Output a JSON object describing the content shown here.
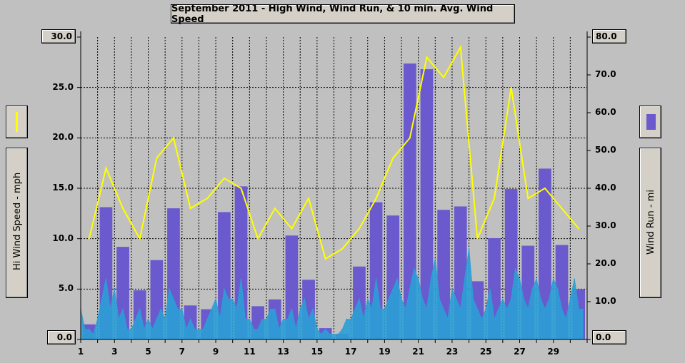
{
  "title": "September 2011 - High Wind, Wind Run, & 10 min. Avg. Wind Speed",
  "left_axis": {
    "label": "Hi Wind Speed - mph",
    "ticks": [
      "30.0",
      "25.0",
      "20.0",
      "15.0",
      "10.0",
      "5.0",
      "0.0"
    ],
    "top_value": "30.0",
    "bottom_value": "0.0"
  },
  "right_axis": {
    "label": "Wind Run - mi",
    "ticks": [
      "80.0",
      "70.0",
      "60.0",
      "50.0",
      "40.0",
      "30.0",
      "20.0",
      "10.0",
      "0.0"
    ],
    "top_value": "80.0",
    "bottom_value": "0.0"
  },
  "x_ticks": [
    "1",
    "3",
    "5",
    "7",
    "9",
    "11",
    "13",
    "15",
    "17",
    "19",
    "21",
    "23",
    "25",
    "27",
    "29"
  ],
  "legend": {
    "hi_wind_color": "#ffff00",
    "wind_run_color": "#6a5acd",
    "avg_color": "#2b9fd6"
  },
  "chart_data": {
    "type": "bar",
    "title": "September 2011 - High Wind, Wind Run, & 10 min. Avg. Wind Speed",
    "xlabel": "",
    "grid": true,
    "x_range": [
      1,
      31
    ],
    "series": [
      {
        "name": "Wind Run - mi",
        "axis": "right",
        "ylim": [
          0,
          80
        ],
        "days": [
          1,
          2,
          3,
          4,
          5,
          6,
          7,
          8,
          9,
          10,
          11,
          12,
          13,
          14,
          15,
          16,
          17,
          18,
          19,
          20,
          21,
          22,
          23,
          24,
          25,
          26,
          27,
          28,
          29,
          30
        ],
        "values": [
          4,
          35,
          24.5,
          13,
          21,
          34.7,
          9,
          8,
          33.7,
          40.5,
          8.8,
          10.6,
          27.5,
          15.8,
          3,
          1.5,
          19.3,
          36.3,
          32.8,
          73,
          71.5,
          34.3,
          35.2,
          15.4,
          26.8,
          39.8,
          24.8,
          45.2,
          25,
          13.3
        ]
      },
      {
        "name": "Hi Wind Speed - mph",
        "axis": "left",
        "ylim": [
          0,
          30
        ],
        "days": [
          1.5,
          2.5,
          3.5,
          4.5,
          5.5,
          6.5,
          7.5,
          8.5,
          9.5,
          10.5,
          11.5,
          12.5,
          13.5,
          14.5,
          15.5,
          16.5,
          17.5,
          18.5,
          19.5,
          20.5,
          21.5,
          22.5,
          23.5,
          24.5,
          25.5,
          26.5,
          27.5,
          28.5,
          29.5,
          30.5
        ],
        "values": [
          10,
          17,
          13,
          10,
          18,
          20,
          13,
          14,
          16,
          15,
          10,
          13,
          11,
          14,
          8,
          9,
          11,
          14,
          18,
          20,
          28,
          26,
          29,
          10,
          14,
          25,
          14,
          15,
          13,
          11
        ]
      },
      {
        "name": "10 min. Avg. Wind Speed",
        "axis": "left",
        "ylim": [
          0,
          30
        ],
        "days": [
          1,
          1.25,
          1.5,
          1.75,
          2,
          2.25,
          2.5,
          2.75,
          3,
          3.25,
          3.5,
          3.75,
          4,
          4.25,
          4.5,
          4.75,
          5,
          5.25,
          5.5,
          5.75,
          6,
          6.25,
          6.5,
          6.75,
          7,
          7.25,
          7.5,
          7.75,
          8,
          8.25,
          8.5,
          8.75,
          9,
          9.25,
          9.5,
          9.75,
          10,
          10.25,
          10.5,
          10.75,
          11,
          11.25,
          11.5,
          11.75,
          12,
          12.25,
          12.5,
          12.75,
          13,
          13.25,
          13.5,
          13.75,
          14,
          14.25,
          14.5,
          14.75,
          15,
          15.25,
          15.5,
          15.75,
          16,
          16.25,
          16.5,
          16.75,
          17,
          17.25,
          17.5,
          17.75,
          18,
          18.25,
          18.5,
          18.75,
          19,
          19.25,
          19.5,
          19.75,
          20,
          20.25,
          20.5,
          20.75,
          21,
          21.25,
          21.5,
          21.75,
          22,
          22.25,
          22.5,
          22.75,
          23,
          23.25,
          23.5,
          23.75,
          24,
          24.25,
          24.5,
          24.75,
          25,
          25.25,
          25.5,
          25.75,
          26,
          26.25,
          26.5,
          26.75,
          27,
          27.25,
          27.5,
          27.75,
          28,
          28.25,
          28.5,
          28.75,
          29,
          29.25,
          29.5,
          29.75,
          30,
          30.25,
          30.5,
          30.75
        ],
        "values": [
          3,
          1,
          1,
          0.5,
          2,
          4,
          6,
          3,
          5,
          2,
          3,
          1,
          1,
          2,
          3,
          1,
          2,
          1,
          2,
          3,
          2,
          5,
          4,
          3,
          3,
          1,
          2,
          1,
          1,
          1,
          2,
          3,
          4,
          2,
          5,
          4,
          4,
          3,
          6,
          2,
          2,
          1,
          1,
          2,
          2,
          3,
          3,
          1,
          2,
          2,
          3,
          1,
          3,
          4,
          2,
          3,
          1,
          0.5,
          1,
          0.5,
          0.5,
          0.5,
          1,
          2,
          2,
          3,
          4,
          2,
          4,
          3,
          6,
          3,
          3,
          4,
          5,
          6,
          4,
          3,
          5,
          7,
          6,
          4,
          3,
          6,
          8,
          4,
          3,
          2,
          5,
          4,
          3,
          6,
          9,
          4,
          3,
          2,
          3,
          5,
          2,
          3,
          4,
          3,
          4,
          7,
          6,
          4,
          3,
          5,
          6,
          4,
          3,
          4,
          6,
          5,
          3,
          2,
          4,
          6,
          3,
          3
        ]
      }
    ]
  }
}
